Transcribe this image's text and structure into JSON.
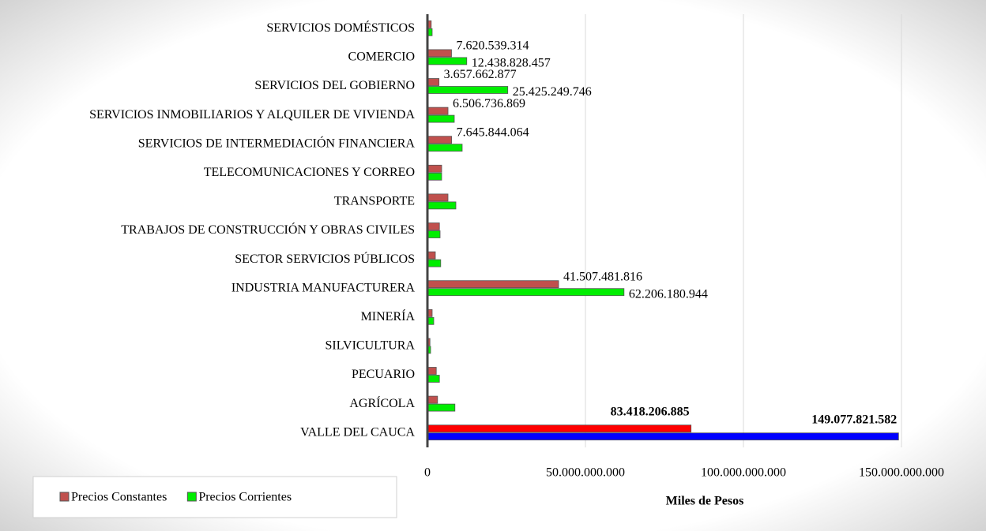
{
  "chart_data": {
    "type": "hbar",
    "categories": [
      "SERVICIOS DOMÉSTICOS",
      "COMERCIO",
      "SERVICIOS DEL GOBIERNO",
      "SERVICIOS INMOBILIARIOS Y ALQUILER DE VIVIENDA",
      "SERVICIOS DE INTERMEDIACIÓN FINANCIERA",
      "TELECOMUNICACIONES Y CORREO",
      "TRANSPORTE",
      "TRABAJOS DE CONSTRUCCIÓN Y OBRAS CIVILES",
      "SECTOR  SERVICIOS PÚBLICOS",
      "INDUSTRIA MANUFACTURERA",
      "MINERÍA",
      "SILVICULTURA",
      "PECUARIO",
      "AGRÍCOLA",
      "VALLE DEL CAUCA"
    ],
    "series": [
      {
        "name": "Precios Constantes",
        "color": "#c0504d",
        "colors": [
          "#c0504d",
          "#c0504d",
          "#c0504d",
          "#c0504d",
          "#c0504d",
          "#c0504d",
          "#c0504d",
          "#c0504d",
          "#c0504d",
          "#c0504d",
          "#c0504d",
          "#c0504d",
          "#c0504d",
          "#c0504d",
          "#ff0000"
        ],
        "values": [
          1200000000,
          7620539314,
          3657662877,
          6506736869,
          7645844064,
          4500000000,
          6500000000,
          3800000000,
          2500000000,
          41507481816,
          1500000000,
          800000000,
          2800000000,
          3200000000,
          83418206885
        ],
        "value_labels": [
          null,
          "7.620.539.314",
          "3.657.662.877",
          "6.506.736.869",
          "7.645.844.064",
          null,
          null,
          null,
          null,
          "41.507.481.816",
          null,
          null,
          null,
          null,
          "83.418.206.885"
        ]
      },
      {
        "name": "Precios Corrientes",
        "color": "#00ee00",
        "colors": [
          "#00ee00",
          "#00ee00",
          "#00ee00",
          "#00ee00",
          "#00ee00",
          "#00ee00",
          "#00ee00",
          "#00ee00",
          "#00ee00",
          "#00ee00",
          "#00ee00",
          "#00ee00",
          "#00ee00",
          "#00ee00",
          "#0000ff"
        ],
        "values": [
          1500000000,
          12438828457,
          25425249746,
          8500000000,
          11000000000,
          4500000000,
          9000000000,
          4000000000,
          4200000000,
          62206180944,
          2000000000,
          1000000000,
          3800000000,
          8700000000,
          149077821582
        ],
        "value_labels": [
          null,
          "12.438.828.457",
          "25.425.249.746",
          null,
          null,
          null,
          null,
          null,
          null,
          "62.206.180.944",
          null,
          null,
          null,
          null,
          "149.077.821.582"
        ]
      }
    ],
    "xlabel": "Miles de Pesos",
    "xlim": [
      0,
      150000000000
    ],
    "xticks": [
      0,
      {
        "value": 50000000000,
        "label": "50.000.000.000"
      },
      {
        "value": 100000000000,
        "label": "100.000.000.000"
      },
      {
        "value": 150000000000,
        "label": "150.000.000.000"
      }
    ],
    "grid": true,
    "legend": "lower left"
  }
}
